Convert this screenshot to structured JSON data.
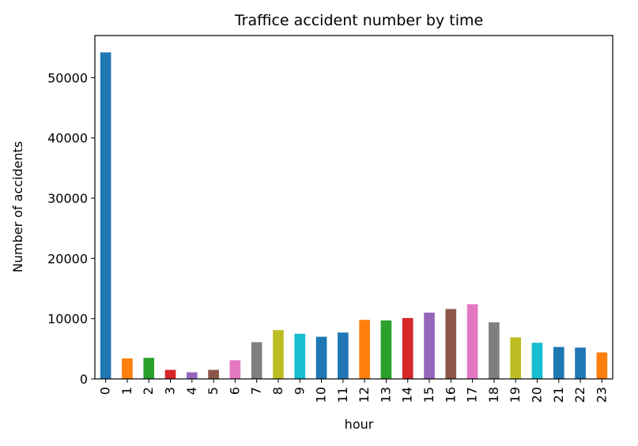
{
  "chart_data": {
    "type": "bar",
    "title": "Traffice accident number by time",
    "xlabel": "hour",
    "ylabel": "Number of accidents",
    "categories": [
      "0",
      "1",
      "2",
      "3",
      "4",
      "5",
      "6",
      "7",
      "8",
      "9",
      "10",
      "11",
      "12",
      "13",
      "14",
      "15",
      "16",
      "17",
      "18",
      "19",
      "20",
      "21",
      "22",
      "23"
    ],
    "values": [
      54200,
      3400,
      3500,
      1500,
      1100,
      1500,
      3100,
      6100,
      8100,
      7500,
      7000,
      7700,
      9800,
      9700,
      10100,
      11000,
      11600,
      12400,
      9400,
      6900,
      6000,
      5300,
      5200,
      4400
    ],
    "colors": [
      "#1f77b4",
      "#ff7f0e",
      "#2ca02c",
      "#d62728",
      "#9467bd",
      "#8c564b",
      "#e377c2",
      "#7f7f7f",
      "#bcbd22",
      "#17becf",
      "#1f77b4",
      "#1f77b4",
      "#ff7f0e",
      "#2ca02c",
      "#d62728",
      "#9467bd",
      "#8c564b",
      "#e377c2",
      "#7f7f7f",
      "#bcbd22",
      "#17becf",
      "#1f77b4",
      "#1f77b4",
      "#ff7f0e"
    ],
    "yticks": [
      0,
      10000,
      20000,
      30000,
      40000,
      50000
    ],
    "ylim": [
      0,
      57000
    ],
    "grid": false,
    "legend": "none"
  }
}
